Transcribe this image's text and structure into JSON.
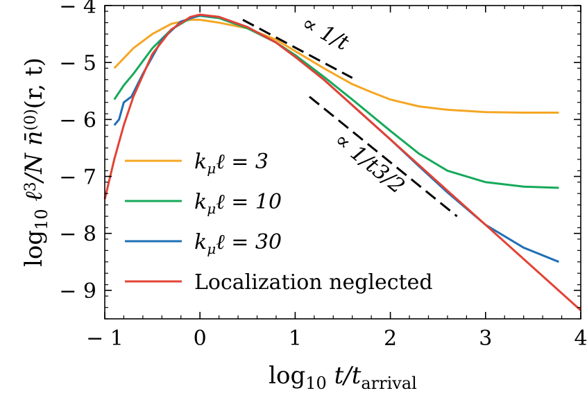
{
  "chart_data": {
    "type": "line",
    "xlabel_parts": {
      "prefix": "log",
      "sub": "10",
      "body": " t/t",
      "body_sub": "arrival"
    },
    "ylabel_parts": {
      "prefix": "log",
      "sub": "10",
      "body": " ℓ",
      "sup": "3",
      "tail": "/N n̄",
      "tail_sup": "(0)",
      "end": "(r, t)"
    },
    "xlim": [
      -1,
      4
    ],
    "ylim": [
      -9.5,
      -4
    ],
    "x_ticks": [
      -1,
      0,
      1,
      2,
      3,
      4
    ],
    "x_tick_labels": [
      "− 1",
      "0",
      "1",
      "2",
      "3",
      "4"
    ],
    "y_ticks": [
      -9,
      -8,
      -7,
      -6,
      -5,
      -4
    ],
    "y_tick_labels": [
      "− 9",
      "− 8",
      "− 7",
      "− 6",
      "− 5",
      "− 4"
    ],
    "legend_position": "lower-left",
    "series": [
      {
        "name": "kμℓ = 3",
        "label_main": "k",
        "label_sub": "μ",
        "label_rest": "ℓ = 3",
        "color": "#f5a623",
        "x": [
          -0.9,
          -0.7,
          -0.5,
          -0.3,
          -0.1,
          0.0,
          0.2,
          0.5,
          0.8,
          1.0,
          1.3,
          1.6,
          1.8,
          2.0,
          2.3,
          2.6,
          3.0,
          3.4,
          3.77
        ],
        "y": [
          -5.1,
          -4.75,
          -4.5,
          -4.32,
          -4.25,
          -4.25,
          -4.3,
          -4.4,
          -4.6,
          -4.8,
          -5.1,
          -5.38,
          -5.52,
          -5.65,
          -5.77,
          -5.83,
          -5.87,
          -5.88,
          -5.88
        ]
      },
      {
        "name": "kμℓ = 10",
        "label_main": "k",
        "label_sub": "μ",
        "label_rest": "ℓ = 10",
        "color": "#16a95a",
        "x": [
          -0.9,
          -0.8,
          -0.7,
          -0.5,
          -0.3,
          -0.1,
          0.0,
          0.2,
          0.5,
          0.8,
          1.0,
          1.3,
          1.6,
          2.0,
          2.3,
          2.6,
          3.0,
          3.4,
          3.77
        ],
        "y": [
          -5.65,
          -5.4,
          -5.2,
          -4.75,
          -4.42,
          -4.22,
          -4.18,
          -4.22,
          -4.4,
          -4.65,
          -4.87,
          -5.25,
          -5.65,
          -6.2,
          -6.6,
          -6.9,
          -7.1,
          -7.18,
          -7.2
        ]
      },
      {
        "name": "kμℓ = 30",
        "label_main": "k",
        "label_sub": "μ",
        "label_rest": "ℓ = 30",
        "color": "#1f6fb5",
        "x": [
          -0.9,
          -0.85,
          -0.8,
          -0.72,
          -0.6,
          -0.4,
          -0.2,
          0.0,
          0.2,
          0.5,
          0.8,
          1.0,
          1.3,
          1.6,
          2.0,
          2.3,
          2.6,
          3.0,
          3.4,
          3.77
        ],
        "y": [
          -6.1,
          -6.0,
          -5.7,
          -5.6,
          -5.2,
          -4.6,
          -4.28,
          -4.17,
          -4.2,
          -4.38,
          -4.65,
          -4.9,
          -5.3,
          -5.75,
          -6.35,
          -6.82,
          -7.28,
          -7.85,
          -8.25,
          -8.5
        ]
      },
      {
        "name": "Localization neglected",
        "label_main": "Localization neglected",
        "label_sub": "",
        "label_rest": "",
        "color": "#e34234",
        "x": [
          -1.0,
          -0.9,
          -0.8,
          -0.7,
          -0.5,
          -0.3,
          -0.1,
          0.0,
          0.2,
          0.5,
          0.8,
          1.0,
          1.3,
          1.6,
          2.0,
          2.3,
          2.6,
          3.0,
          3.5,
          4.0
        ],
        "y": [
          -7.4,
          -6.7,
          -6.1,
          -5.6,
          -4.85,
          -4.42,
          -4.2,
          -4.16,
          -4.2,
          -4.38,
          -4.65,
          -4.9,
          -5.3,
          -5.75,
          -6.35,
          -6.8,
          -7.25,
          -7.85,
          -8.6,
          -9.35
        ]
      }
    ],
    "guides": [
      {
        "label": "∝ 1/t",
        "x": [
          0.45,
          1.6
        ],
        "y": [
          -4.25,
          -5.27
        ]
      },
      {
        "label": "∝ 1/t3/2",
        "x": [
          1.15,
          2.7
        ],
        "y": [
          -5.6,
          -7.7
        ]
      }
    ]
  }
}
